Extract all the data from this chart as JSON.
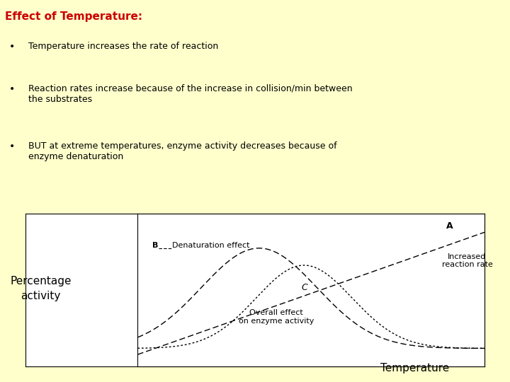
{
  "background_color": "#ffffcc",
  "title": "Effect of Temperature:",
  "title_color": "#cc0000",
  "bullet1": "Temperature increases the rate of reaction",
  "bullet2": "Reaction rates increase because of the increase in collision/min between\nthe substrates",
  "bullet3": "BUT at extreme temperatures, enzyme activity decreases because of\nenzyme denaturation",
  "graph_bg": "#ffffff",
  "ylabel": "Percentage\nactivity",
  "xlabel": "Temperature",
  "curve_A_label": "A",
  "curve_A_sublabel": "Increased\nreaction rate",
  "curve_B_label": "B",
  "curve_B_sublabel": "Denaturation effect",
  "curve_C_label": "C",
  "curve_C_sublabel": "Overall effect\non enzyme activity",
  "font_size_title": 11,
  "font_size_body": 9,
  "font_size_graph_ylabel": 11,
  "font_size_graph_xlabel": 11,
  "font_size_graph_labels": 8
}
